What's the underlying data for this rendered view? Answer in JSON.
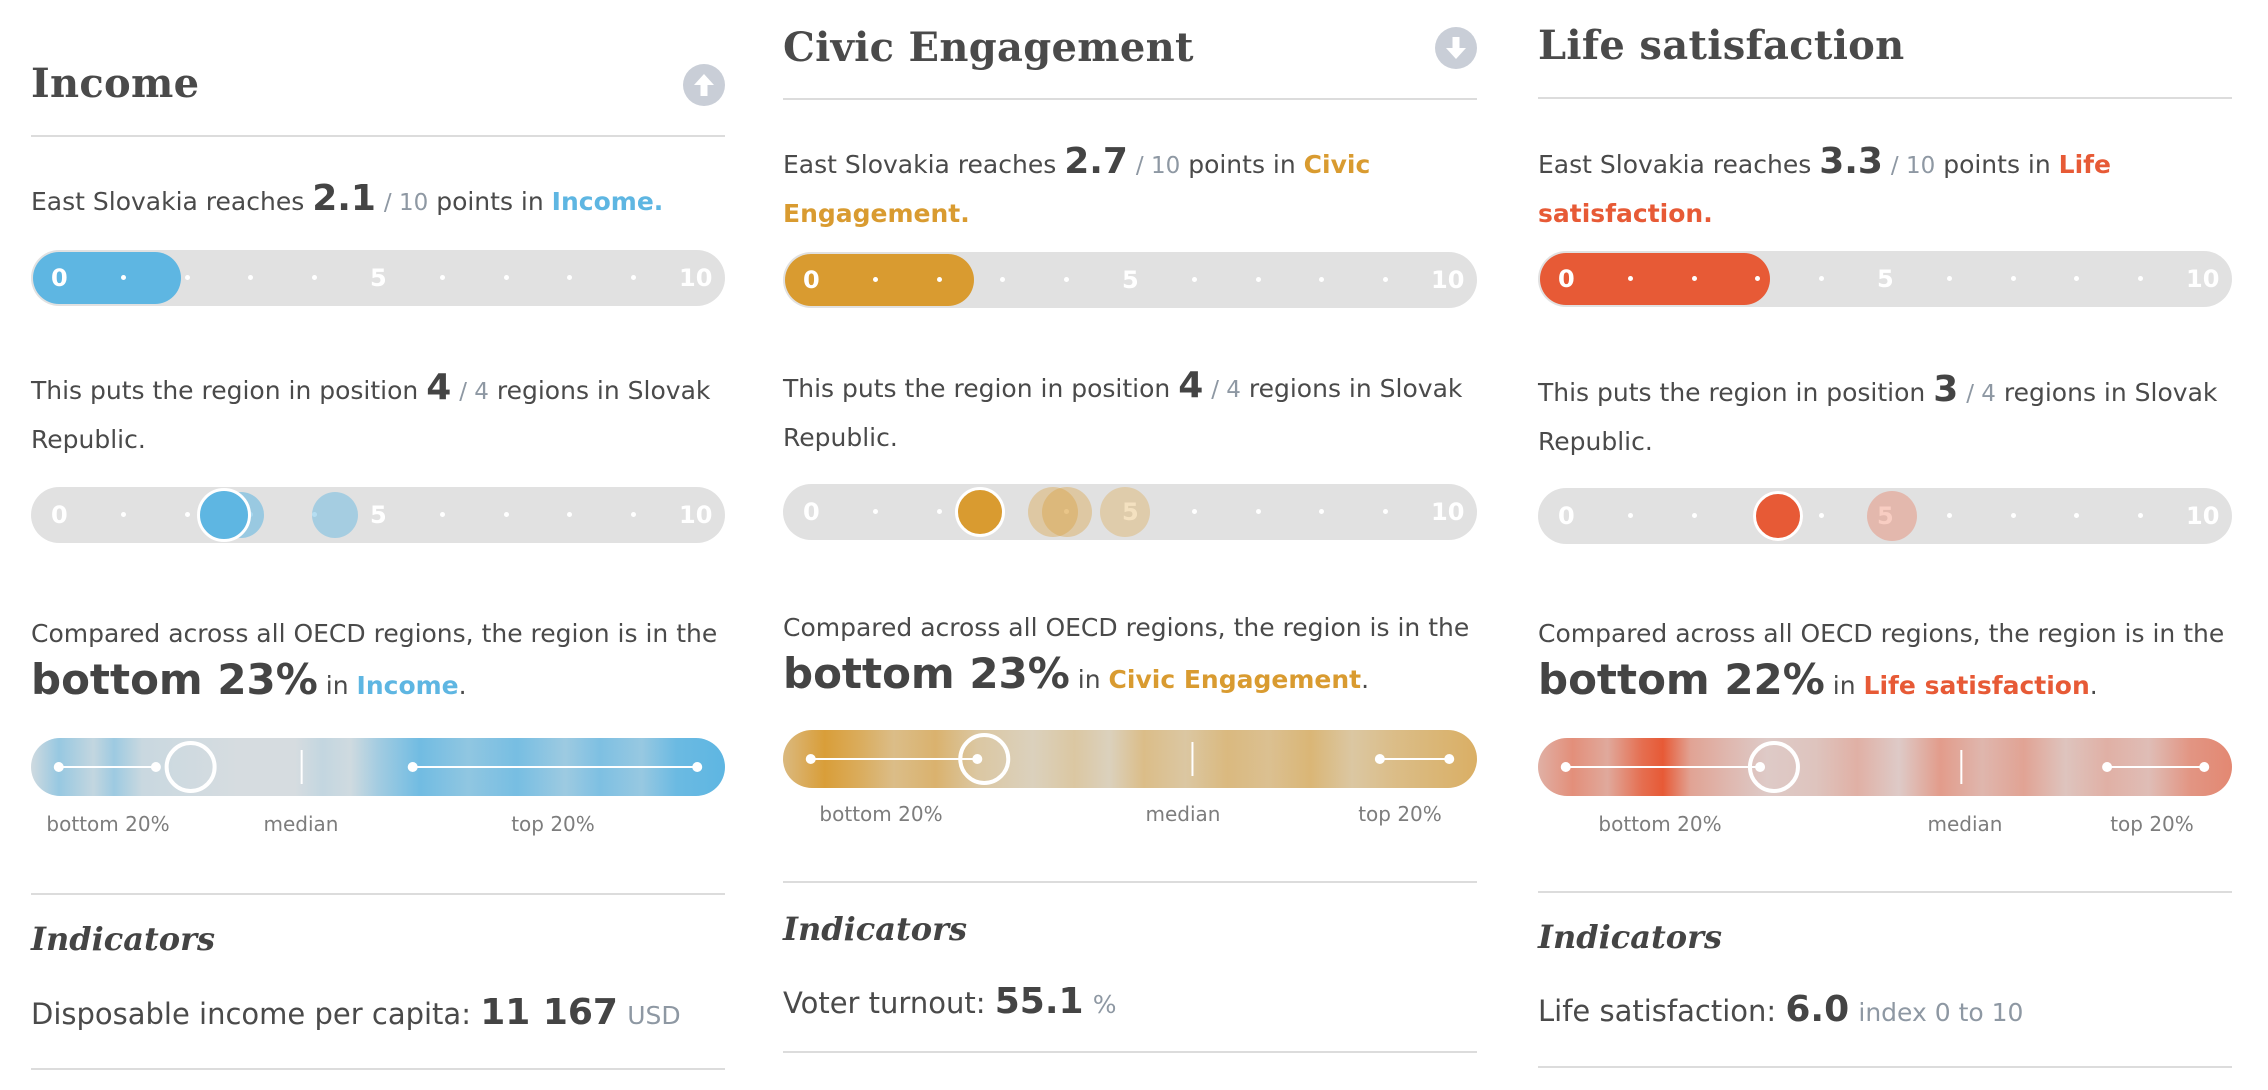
{
  "colors": {
    "income": "#5eb6e2",
    "civic": "#d99b30",
    "life": "#e75a36",
    "track": "#e1e1e1",
    "divider": "#dcdcdc",
    "muted_text": "#8e98a3"
  },
  "panels": [
    {
      "key": "income",
      "color": "#5eb6e2",
      "title": "Income",
      "nav_icon": "arrow-up-circle-icon",
      "score": {
        "prefix": "East Slovakia reaches ",
        "value": "2.1",
        "outof": "/ 10",
        "mid": " points in ",
        "topic": "Income.",
        "fraction": 0.21
      },
      "scale_ticks": {
        "start": "0",
        "mid": "5",
        "end": "10"
      },
      "position": {
        "prefix": "This puts the region in position ",
        "value": "4",
        "outof": "/ 4",
        "suffix": " regions in Slovak Republic."
      },
      "comparison": {
        "intro": "Compared across all OECD regions, the region is in the",
        "rank": "bottom 23%",
        "in": " in ",
        "topic": "Income",
        "period": "."
      },
      "distribution_labels": {
        "bottom": "bottom 20%",
        "median": "median",
        "top": "top 20%"
      },
      "indicator": {
        "heading": "Indicators",
        "label": "Disposable income per capita: ",
        "value": "11 167",
        "unit": "USD"
      }
    },
    {
      "key": "civic",
      "color": "#d99b30",
      "title": "Civic Engagement",
      "nav_icon": "arrow-down-circle-icon",
      "score": {
        "prefix": "East Slovakia reaches ",
        "value": "2.7",
        "outof": "/ 10",
        "mid": " points in ",
        "topic": "Civic Engagement.",
        "fraction": 0.27
      },
      "scale_ticks": {
        "start": "0",
        "mid": "5",
        "end": "10"
      },
      "position": {
        "prefix": "This puts the region in position ",
        "value": "4",
        "outof": "/ 4",
        "suffix": " regions in Slovak Republic."
      },
      "comparison": {
        "intro": "Compared across all OECD regions, the region is in the",
        "rank": "bottom 23%",
        "in": " in ",
        "topic": "Civic Engagement",
        "period": "."
      },
      "distribution_labels": {
        "bottom": "bottom 20%",
        "median": "median",
        "top": "top 20%"
      },
      "indicator": {
        "heading": "Indicators",
        "label": "Voter turnout: ",
        "value": "55.1",
        "unit": "%"
      }
    },
    {
      "key": "life",
      "color": "#e75a36",
      "title": "Life satisfaction",
      "nav_icon": "",
      "score": {
        "prefix": "East Slovakia reaches ",
        "value": "3.3",
        "outof": "/ 10",
        "mid": " points in ",
        "topic": "Life satisfaction.",
        "fraction": 0.33
      },
      "scale_ticks": {
        "start": "0",
        "mid": "5",
        "end": "10"
      },
      "position": {
        "prefix": "This puts the region in position ",
        "value": "3",
        "outof": "/ 4",
        "suffix": " regions in Slovak Republic."
      },
      "comparison": {
        "intro": "Compared across all OECD regions, the region is in the",
        "rank": "bottom 22%",
        "in": " in ",
        "topic": "Life satisfaction",
        "period": "."
      },
      "distribution_labels": {
        "bottom": "bottom 20%",
        "median": "median",
        "top": "top 20%"
      },
      "indicator": {
        "heading": "Indicators",
        "label": "Life satisfaction: ",
        "value": "6.0",
        "unit": "index 0 to 10"
      }
    }
  ]
}
